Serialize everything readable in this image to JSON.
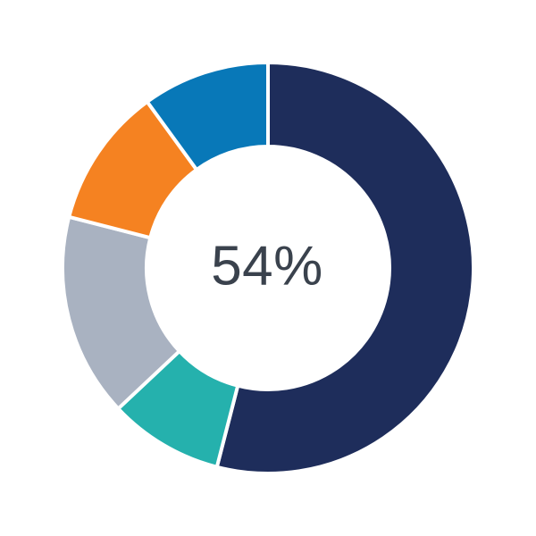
{
  "page": {
    "background_color": "#ffffff"
  },
  "chart_data": {
    "type": "pie",
    "variant": "donut",
    "title": "",
    "legend": "none",
    "rotation": "clockwise",
    "start_angle_deg": 0,
    "donut_hole_ratio": 0.59,
    "separator_color": "#ffffff",
    "center_label": "54%",
    "center_label_color": "#3A424D",
    "total": 100,
    "segments": [
      {
        "name": "navy",
        "value": 54,
        "color": "#1E2D5B"
      },
      {
        "name": "teal",
        "value": 9,
        "color": "#25B1AD"
      },
      {
        "name": "gray",
        "value": 16,
        "color": "#A9B2C1"
      },
      {
        "name": "orange",
        "value": 11,
        "color": "#F58221"
      },
      {
        "name": "blue",
        "value": 10,
        "color": "#0878B8"
      }
    ]
  }
}
